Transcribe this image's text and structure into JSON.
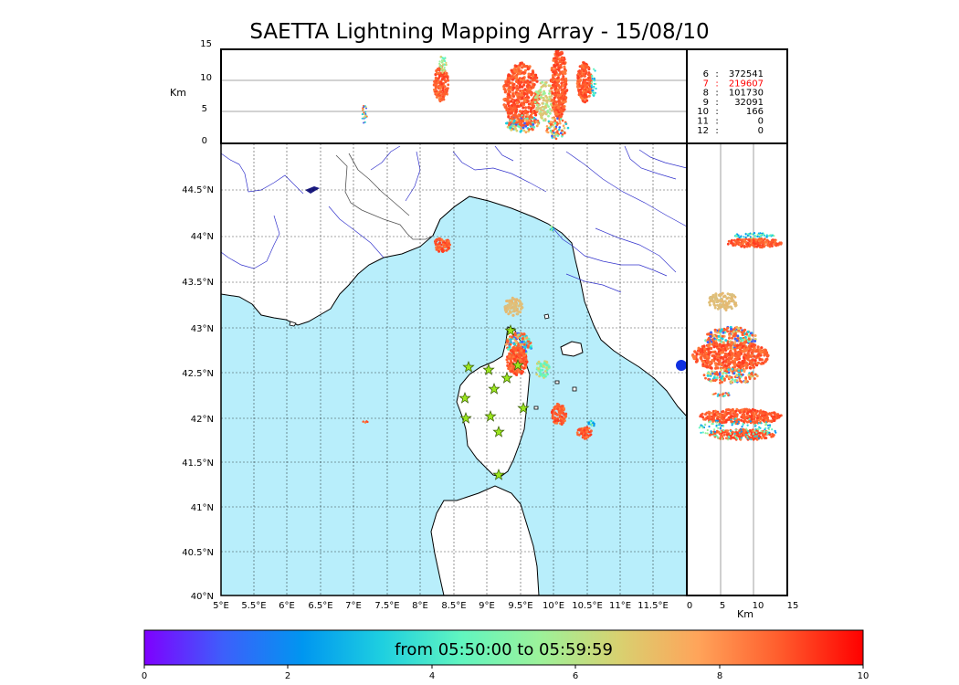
{
  "title": "SAETTA Lightning Mapping Array - 15/08/10",
  "altitude_panel": {
    "unit_label": "Km",
    "y_ticks": [
      "15",
      "10",
      "5",
      "0"
    ]
  },
  "side_panel": {
    "unit_label": "Km",
    "x_ticks": [
      "0",
      "5",
      "10",
      "15"
    ]
  },
  "map": {
    "lat_ticks": [
      "44.5°N",
      "44°N",
      "43.5°N",
      "43°N",
      "42.5°N",
      "42°N",
      "41.5°N",
      "41°N",
      "40.5°N",
      "40°N"
    ],
    "lon_ticks": [
      "5°E",
      "5.5°E",
      "6°E",
      "6.5°E",
      "7°E",
      "7.5°E",
      "8°E",
      "8.5°E",
      "9°E",
      "9.5°E",
      "10°E",
      "10.5°E",
      "11°E",
      "11.5°E"
    ],
    "sea_color": "#b8eefb",
    "land_color": "#ffffff",
    "river_color": "#3333cc",
    "station_color": "#9be61e",
    "station_count": 12
  },
  "station_counts": [
    {
      "stations": "6",
      "sep": ":",
      "count": "372541",
      "color": "#000000"
    },
    {
      "stations": "7",
      "sep": ":",
      "count": "219607",
      "color": "#ff0000"
    },
    {
      "stations": "8",
      "sep": ":",
      "count": "101730",
      "color": "#000000"
    },
    {
      "stations": "9",
      "sep": ":",
      "count": "32091",
      "color": "#000000"
    },
    {
      "stations": "10",
      "sep": ":",
      "count": "166",
      "color": "#000000"
    },
    {
      "stations": "11",
      "sep": ":",
      "count": "0",
      "color": "#000000"
    },
    {
      "stations": "12",
      "sep": ":",
      "count": "0",
      "color": "#000000"
    }
  ],
  "colorbar": {
    "label": "from 05:50:00 to 05:59:59",
    "ticks": [
      "0",
      "2",
      "4",
      "6",
      "8",
      "10"
    ],
    "colors": [
      "#7f00ff",
      "#3d5ffb",
      "#0096f0",
      "#1ecfe0",
      "#60f5c0",
      "#9cf29a",
      "#d8d170",
      "#ffa45a",
      "#ff5f2e",
      "#ff0000"
    ]
  }
}
